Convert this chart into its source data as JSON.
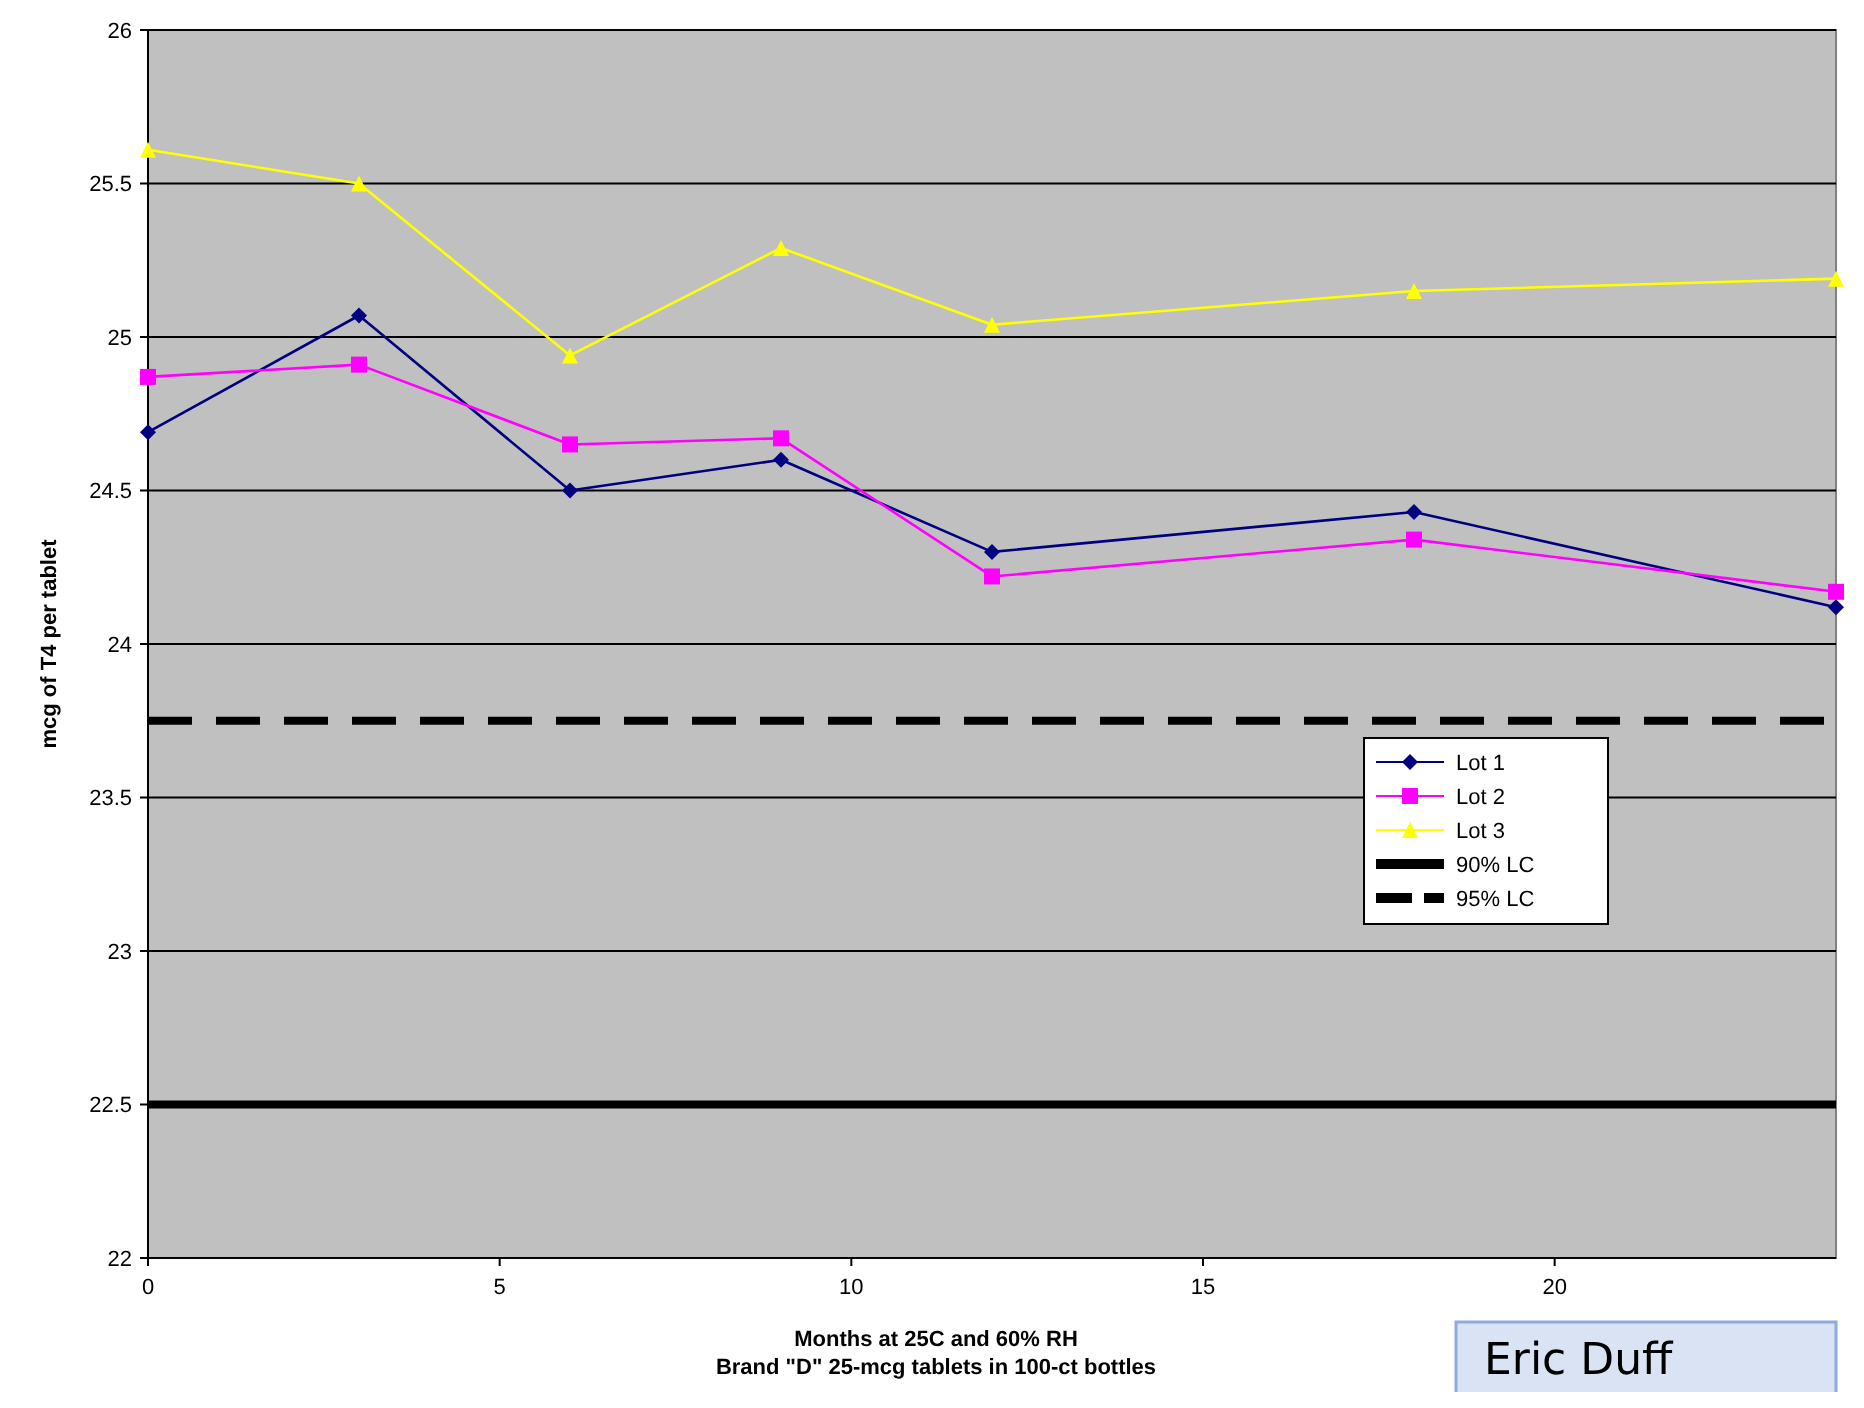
{
  "chart_data": {
    "type": "line",
    "xlabel": "Months at 25C and 60% RH",
    "ylabel": "mcg of T4 per tablet",
    "annotations": [
      "Brand \"D\" 25-mcg tablets in 100-ct bottles",
      "Eric Duff"
    ],
    "x": [
      0,
      3,
      6,
      9,
      12,
      18,
      24
    ],
    "series": [
      {
        "name": "Lot 1",
        "color": "#000080",
        "marker": "diamond",
        "values": [
          24.69,
          25.07,
          24.5,
          24.6,
          24.3,
          24.43,
          24.12
        ]
      },
      {
        "name": "Lot 2",
        "color": "#ff00ff",
        "marker": "square",
        "values": [
          24.87,
          24.91,
          24.65,
          24.67,
          24.22,
          24.34,
          24.17
        ]
      },
      {
        "name": "Lot 3",
        "color": "#ffff00",
        "marker": "triangle",
        "values": [
          25.61,
          25.5,
          24.94,
          25.29,
          25.04,
          25.15,
          25.19
        ]
      }
    ],
    "ref_lines": [
      {
        "axis": "y",
        "value": 22.5,
        "label": "90% LC",
        "color": "#000000",
        "line_style": "solid"
      },
      {
        "axis": "y",
        "value": 23.75,
        "label": "95% LC",
        "color": "#000000",
        "line_style": "dashed"
      }
    ],
    "xlim": [
      0,
      24
    ],
    "xticks": [
      0,
      5,
      10,
      15,
      20
    ],
    "ylim": [
      22,
      26
    ],
    "yticks": [
      22,
      22.5,
      23,
      23.5,
      24,
      24.5,
      25,
      25.5,
      26
    ],
    "grid": "y",
    "legend": "bottom right",
    "line_style": "solid"
  }
}
